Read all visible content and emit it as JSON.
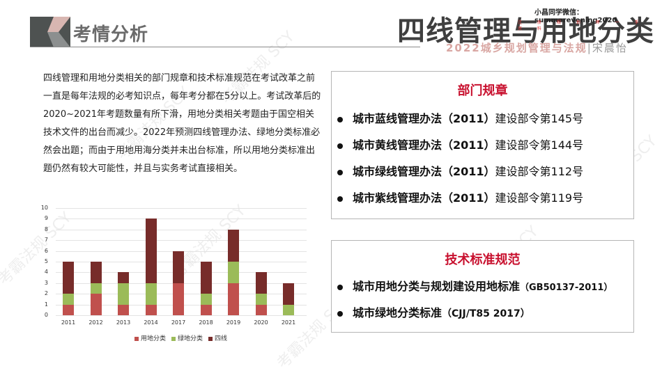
{
  "header": {
    "section_label": "考情分析",
    "main_title": "四线管理与用地分类",
    "wechat": "小昌同学微信：summerevening2020",
    "tagline": "注 册 规 划 师 一 手 资 料",
    "course": "2022城乡规划管理与法规",
    "separator": "|",
    "author": "宋晨怡"
  },
  "intro_paragraph": "四线管理和用地分类相关的部门规章和技术标准规范在考试改革之前一直是每年法规的必考知识点，每年考分都在5分以上。考试改革后的2020~2021年考题数量有所下滑，用地分类相关考题由于国空相关技术文件的出台而减少。2022年预测四线管理办法、绿地分类标准必然会出题；而由于用地用海分类并未出台标准，所以用地分类标准出题仍然有较大可能性，并且与实务考试直接相关。",
  "panel_regulations": {
    "title": "部门规章",
    "items": [
      {
        "name": "城市蓝线管理办法（2011）",
        "detail": "建设部令第145号"
      },
      {
        "name": "城市黄线管理办法（2011）",
        "detail": "建设部令第144号"
      },
      {
        "name": "城市绿线管理办法（2011）",
        "detail": "建设部令第112号"
      },
      {
        "name": "城市紫线管理办法（2011）",
        "detail": "建设部令第119号"
      }
    ]
  },
  "panel_standards": {
    "title": "技术标准规范",
    "items": [
      {
        "name": "城市用地分类与规划建设用地标准",
        "code": "（GB50137-2011）"
      },
      {
        "name": "城市绿地分类标准",
        "code": "（CJJ/T85 2017）"
      }
    ]
  },
  "watermark": "考霸法规 SCY",
  "colors": {
    "land_use": "#c0504d",
    "green_space": "#9bbb59",
    "four_lines": "#772c2a",
    "panel_title": "#c8102e"
  },
  "chart_data": {
    "type": "bar",
    "stacked": true,
    "title": "",
    "xlabel": "",
    "ylabel": "",
    "ylim": [
      0,
      10
    ],
    "yticks": [
      "0",
      "1",
      "2",
      "3",
      "4",
      "5",
      "6",
      "7",
      "8",
      "9",
      "10"
    ],
    "grid": true,
    "legend_position": "bottom",
    "categories": [
      "2011",
      "2012",
      "2013",
      "2014",
      "2017",
      "2018",
      "2019",
      "2020",
      "2021"
    ],
    "series": [
      {
        "name": "用地分类",
        "color": "#c0504d",
        "values": [
          1,
          2,
          1,
          1,
          3,
          1,
          3,
          1,
          0
        ]
      },
      {
        "name": "绿地分类",
        "color": "#9bbb59",
        "values": [
          1,
          1,
          2,
          2,
          0,
          1,
          2,
          1,
          1
        ]
      },
      {
        "name": "四线",
        "color": "#772c2a",
        "values": [
          3,
          2,
          1,
          6,
          3,
          3,
          3,
          2,
          2
        ]
      }
    ]
  }
}
